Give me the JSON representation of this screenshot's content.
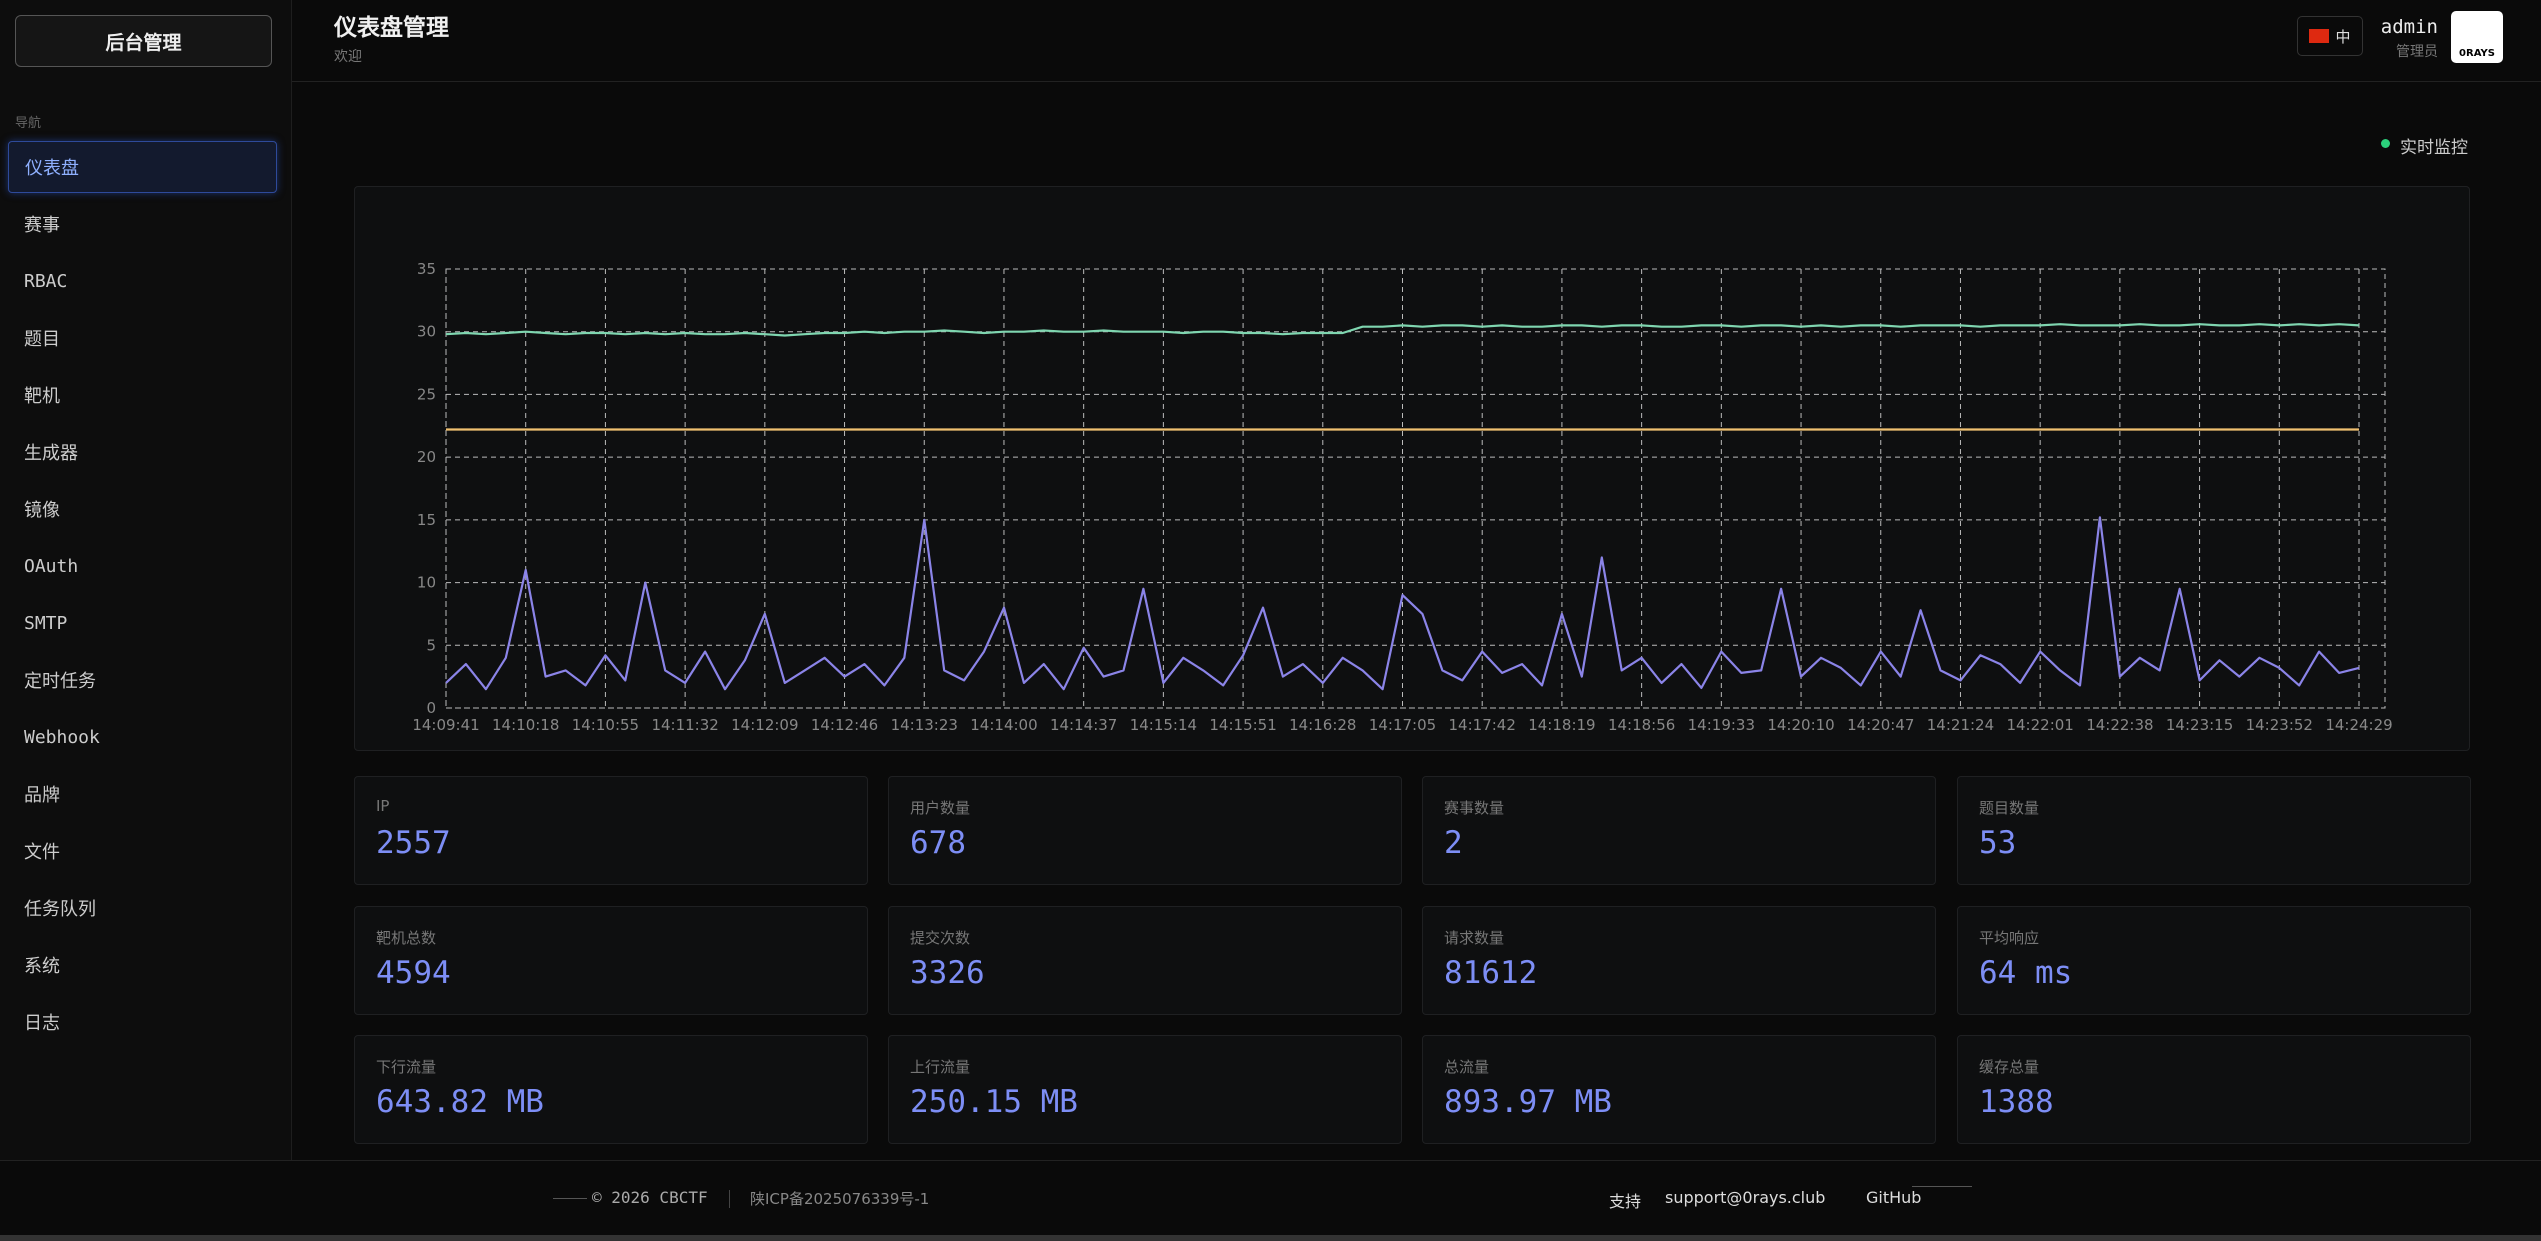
{
  "sidebar": {
    "brand": "后台管理",
    "section": "导航",
    "items": [
      "仪表盘",
      "赛事",
      "RBAC",
      "题目",
      "靶机",
      "生成器",
      "镜像",
      "OAuth",
      "SMTP",
      "定时任务",
      "Webhook",
      "品牌",
      "文件",
      "任务队列",
      "系统",
      "日志"
    ]
  },
  "header": {
    "title": "仪表盘管理",
    "subtitle": "欢迎",
    "language": "中",
    "user": "admin",
    "role": "管理员",
    "logo": "0RAYS"
  },
  "status": "实时监控",
  "chart_data": {
    "type": "line",
    "categories": [
      "14:09:41",
      null,
      null,
      null,
      "14:10:18",
      null,
      null,
      null,
      "14:10:55",
      null,
      null,
      null,
      "14:11:32",
      null,
      null,
      null,
      "14:12:09",
      null,
      null,
      null,
      "14:12:46",
      null,
      null,
      null,
      "14:13:23",
      null,
      null,
      null,
      "14:14:00",
      null,
      null,
      null,
      "14:14:37",
      null,
      null,
      null,
      "14:15:14",
      null,
      null,
      null,
      "14:15:51",
      null,
      null,
      null,
      "14:16:28",
      null,
      null,
      null,
      "14:17:05",
      null,
      null,
      null,
      "14:17:42",
      null,
      null,
      null,
      "14:18:19",
      null,
      null,
      null,
      "14:18:56",
      null,
      null,
      null,
      "14:19:33",
      null,
      null,
      null,
      "14:20:10",
      null,
      null,
      null,
      "14:20:47",
      null,
      null,
      null,
      "14:21:24",
      null,
      null,
      null,
      "14:22:01",
      null,
      null,
      null,
      "14:22:38",
      null,
      null,
      null,
      "14:23:15",
      null,
      null,
      null,
      "14:23:52",
      null,
      null,
      null,
      "14:24:29"
    ],
    "series": [
      {
        "color": "#7fd6b0",
        "values": [
          29.8,
          29.9,
          29.8,
          29.9,
          30.0,
          29.9,
          29.8,
          29.9,
          29.9,
          29.8,
          29.9,
          29.8,
          29.9,
          29.8,
          29.8,
          29.9,
          29.8,
          29.7,
          29.8,
          29.9,
          29.9,
          30.0,
          29.9,
          30.0,
          30.0,
          30.1,
          30.0,
          29.9,
          30.0,
          30.0,
          30.1,
          30.0,
          30.0,
          30.1,
          30.0,
          30.0,
          30.0,
          29.9,
          30.0,
          30.0,
          29.9,
          29.9,
          29.8,
          29.9,
          29.9,
          29.9,
          30.4,
          30.4,
          30.5,
          30.4,
          30.5,
          30.5,
          30.4,
          30.5,
          30.4,
          30.4,
          30.5,
          30.5,
          30.4,
          30.5,
          30.5,
          30.4,
          30.4,
          30.5,
          30.5,
          30.4,
          30.5,
          30.5,
          30.4,
          30.5,
          30.4,
          30.5,
          30.5,
          30.4,
          30.5,
          30.5,
          30.5,
          30.4,
          30.5,
          30.5,
          30.5,
          30.6,
          30.5,
          30.5,
          30.5,
          30.6,
          30.5,
          30.5,
          30.6,
          30.5,
          30.5,
          30.6,
          30.5,
          30.6,
          30.5,
          30.6,
          30.5
        ]
      },
      {
        "color": "#f0c070",
        "values": [
          22.2,
          22.2,
          22.2,
          22.2,
          22.2,
          22.2,
          22.2,
          22.2,
          22.2,
          22.2,
          22.2,
          22.2,
          22.2,
          22.2,
          22.2,
          22.2,
          22.2,
          22.2,
          22.2,
          22.2,
          22.2,
          22.2,
          22.2,
          22.2,
          22.2,
          22.2,
          22.2,
          22.2,
          22.2,
          22.2,
          22.2,
          22.2,
          22.2,
          22.2,
          22.2,
          22.2,
          22.2,
          22.2,
          22.2,
          22.2,
          22.2,
          22.2,
          22.2,
          22.2,
          22.2,
          22.2,
          22.2,
          22.2,
          22.2,
          22.2,
          22.2,
          22.2,
          22.2,
          22.2,
          22.2,
          22.2,
          22.2,
          22.2,
          22.2,
          22.2,
          22.2,
          22.2,
          22.2,
          22.2,
          22.2,
          22.2,
          22.2,
          22.2,
          22.2,
          22.2,
          22.2,
          22.2,
          22.2,
          22.2,
          22.2,
          22.2,
          22.2,
          22.2,
          22.2,
          22.2,
          22.2,
          22.2,
          22.2,
          22.2,
          22.2,
          22.2,
          22.2,
          22.2,
          22.2,
          22.2,
          22.2,
          22.2,
          22.2,
          22.2,
          22.2,
          22.2,
          22.2
        ]
      },
      {
        "color": "#8b84e8",
        "values": [
          2,
          3.5,
          1.5,
          4,
          11,
          2.5,
          3,
          1.8,
          4.2,
          2.2,
          10,
          3,
          2,
          4.5,
          1.5,
          3.8,
          7.5,
          2,
          3,
          4,
          2.5,
          3.5,
          1.8,
          4,
          15,
          3,
          2.2,
          4.5,
          8,
          2,
          3.5,
          1.5,
          4.8,
          2.5,
          3,
          9.5,
          2,
          4,
          3,
          1.8,
          4.2,
          8,
          2.5,
          3.5,
          2,
          4,
          3,
          1.5,
          9,
          7.5,
          3,
          2.2,
          4.5,
          2.8,
          3.5,
          1.8,
          7.5,
          2.5,
          12,
          3,
          4,
          2,
          3.5,
          1.6,
          4.5,
          2.8,
          3,
          9.5,
          2.5,
          4,
          3.2,
          1.8,
          4.5,
          2.5,
          7.8,
          3,
          2.2,
          4.2,
          3.5,
          2,
          4.5,
          3,
          1.8,
          15.2,
          2.5,
          4,
          3,
          9.5,
          2.2,
          3.8,
          2.5,
          4,
          3.2,
          1.8,
          4.5,
          2.8,
          3.2
        ]
      }
    ],
    "ylim": [
      0,
      35
    ],
    "yticks": [
      0,
      5,
      10,
      15,
      20,
      25,
      30,
      35
    ],
    "grid": true
  },
  "stats": [
    {
      "label": "IP",
      "value": "2557"
    },
    {
      "label": "用户数量",
      "value": "678"
    },
    {
      "label": "赛事数量",
      "value": "2"
    },
    {
      "label": "题目数量",
      "value": "53"
    },
    {
      "label": "靶机总数",
      "value": "4594"
    },
    {
      "label": "提交次数",
      "value": "3326"
    },
    {
      "label": "请求数量",
      "value": "81612"
    },
    {
      "label": "平均响应",
      "value": "64 ms"
    },
    {
      "label": "下行流量",
      "value": "643.82 MB"
    },
    {
      "label": "上行流量",
      "value": "250.15 MB"
    },
    {
      "label": "总流量",
      "value": "893.97 MB"
    },
    {
      "label": "缓存总量",
      "value": "1388"
    }
  ],
  "footer": {
    "copyright": "© 2026 CBCTF",
    "icp": "陕ICP备2025076339号-1",
    "support": "支持",
    "email": "support@0rays.club",
    "github": "GitHub"
  }
}
